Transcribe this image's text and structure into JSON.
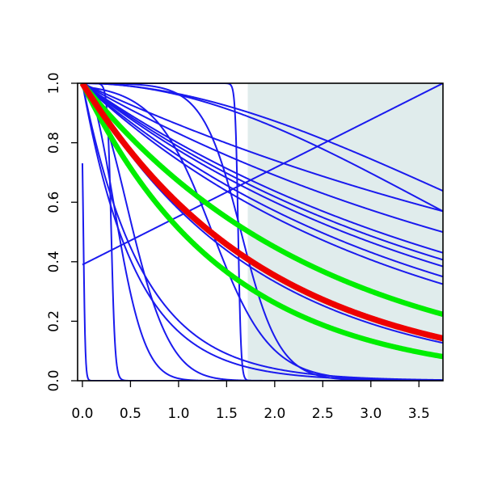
{
  "chart_data": {
    "type": "line",
    "title": "",
    "xlabel": "",
    "ylabel": "",
    "xlim": [
      -0.05,
      3.75
    ],
    "ylim": [
      0,
      1
    ],
    "x_ticks": [
      0.0,
      0.5,
      1.0,
      1.5,
      2.0,
      2.5,
      3.0,
      3.5
    ],
    "x_tick_labels": [
      "0.0",
      "0.5",
      "1.0",
      "1.5",
      "2.0",
      "2.5",
      "3.0",
      "3.5"
    ],
    "y_ticks": [
      0.0,
      0.2,
      0.4,
      0.6,
      0.8,
      1.0
    ],
    "y_tick_labels": [
      "0.0",
      "0.2",
      "0.4",
      "0.6",
      "0.8",
      "1.0"
    ],
    "grid": false,
    "shaded_region": {
      "x_from": 1.72,
      "x_to": 3.75,
      "color": "#e0ecec"
    },
    "colors": {
      "blue": "#1a1aee",
      "green": "#00ee00",
      "red": "#ee0000"
    },
    "series": [
      {
        "color": "blue",
        "kind": "exp_sq",
        "params": [
          0.32
        ],
        "values_at": {
          "0.0": 1.0,
          "0.5": 0.09,
          "1.0": 0.0
        }
      },
      {
        "color": "blue",
        "kind": "exp_sq",
        "params": [
          0.45
        ],
        "values_at": {
          "0.0": 1.0,
          "0.5": 0.29,
          "1.0": 0.01
        }
      },
      {
        "color": "blue",
        "kind": "exp",
        "params": [
          1.8
        ],
        "values_at": {
          "0.0": 1.0,
          "0.5": 0.41,
          "1.0": 0.17,
          "2.0": 0.03
        }
      },
      {
        "color": "blue",
        "kind": "exp",
        "params": [
          1.6
        ],
        "values_at": {
          "0.0": 1.0,
          "0.5": 0.45,
          "1.0": 0.2,
          "2.0": 0.04
        }
      },
      {
        "color": "blue",
        "kind": "step",
        "params": [
          0.01,
          0.01
        ],
        "values_at": {
          "0.0": 1.0,
          "0.03": 0.0
        }
      },
      {
        "color": "blue",
        "kind": "step",
        "params": [
          0.3,
          0.02
        ],
        "values_at": {
          "0.0": 1.0,
          "0.3": 0.5,
          "0.4": 0.0
        }
      },
      {
        "color": "blue",
        "kind": "step",
        "params": [
          1.62,
          0.015
        ],
        "values_at": {
          "0.0": 1.0,
          "1.62": 0.5,
          "1.7": 0.0
        }
      },
      {
        "color": "blue",
        "kind": "logistic",
        "params": [
          1.65,
          0.2
        ],
        "values_at": {
          "0.0": 1.0,
          "1.0": 0.96,
          "1.65": 0.5,
          "2.5": 0.02
        }
      },
      {
        "color": "blue",
        "kind": "logistic",
        "params": [
          1.35,
          0.3
        ],
        "values_at": {
          "0.0": 0.99,
          "1.0": 0.76,
          "1.35": 0.5,
          "2.5": 0.02
        }
      },
      {
        "color": "blue",
        "kind": "line",
        "params": [
          0.39,
          0.61
        ],
        "values_at": {
          "0.0": 0.39,
          "1.0": 0.55,
          "2.0": 0.72,
          "3.75": 1.0
        }
      },
      {
        "color": "blue",
        "kind": "exp",
        "params": [
          0.15
        ],
        "values_at": {
          "0.0": 1.0,
          "2.0": 0.74,
          "3.75": 0.57
        }
      },
      {
        "color": "blue",
        "kind": "exp",
        "params": [
          0.185
        ],
        "values_at": {
          "0.0": 1.0,
          "2.0": 0.69,
          "3.75": 0.5
        }
      },
      {
        "color": "blue",
        "kind": "exp",
        "params": [
          0.225
        ],
        "values_at": {
          "0.0": 1.0,
          "2.0": 0.64,
          "3.75": 0.43
        }
      },
      {
        "color": "blue",
        "kind": "exp",
        "params": [
          0.24
        ],
        "values_at": {
          "0.0": 1.0,
          "2.0": 0.62,
          "3.75": 0.41
        }
      },
      {
        "color": "blue",
        "kind": "exp",
        "params": [
          0.255
        ],
        "values_at": {
          "0.0": 1.0,
          "2.0": 0.6,
          "3.75": 0.38
        }
      },
      {
        "color": "blue",
        "kind": "exp",
        "params": [
          0.28
        ],
        "values_at": {
          "0.0": 1.0,
          "2.0": 0.57,
          "3.75": 0.35
        }
      },
      {
        "color": "blue",
        "kind": "exp",
        "params": [
          0.3
        ],
        "values_at": {
          "0.0": 1.0,
          "2.0": 0.55,
          "3.75": 0.32
        }
      },
      {
        "color": "blue",
        "kind": "weibull",
        "params": [
          0.2,
          2.0
        ],
        "values_at": {
          "0.0": 1.0,
          "2.0": 0.5,
          "3.75": 0.2
        }
      },
      {
        "color": "blue",
        "kind": "weibull",
        "params": [
          0.175,
          1.9
        ],
        "values_at": {
          "0.0": 1.0,
          "2.0": 0.57,
          "3.75": 0.27
        }
      },
      {
        "color": "blue",
        "kind": "exp",
        "params": [
          0.55
        ],
        "values_at": {
          "0.0": 1.0,
          "2.0": 0.33,
          "3.75": 0.13
        }
      },
      {
        "color": "blue",
        "kind": "exp",
        "params": [
          0.53
        ],
        "values_at": {
          "0.0": 1.0,
          "2.0": 0.35,
          "3.75": 0.14
        }
      },
      {
        "color": "green",
        "kind": "exp",
        "params": [
          0.4
        ],
        "values_at": {
          "0.0": 1.0,
          "1.0": 0.67,
          "2.0": 0.45,
          "3.75": 0.23
        }
      },
      {
        "color": "green",
        "kind": "exp",
        "params": [
          0.67
        ],
        "values_at": {
          "0.0": 1.0,
          "1.0": 0.51,
          "2.0": 0.26,
          "3.75": 0.08
        }
      },
      {
        "color": "red",
        "kind": "exp",
        "params": [
          0.52
        ],
        "values_at": {
          "0.0": 1.0,
          "1.0": 0.59,
          "2.0": 0.35,
          "3.75": 0.14
        }
      }
    ]
  }
}
